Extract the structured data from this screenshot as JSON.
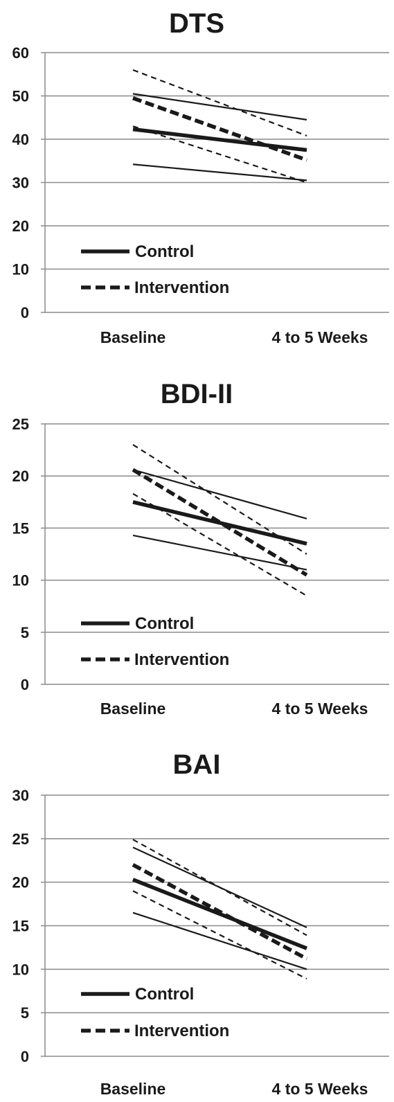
{
  "chart_data": [
    {
      "type": "line",
      "title": "DTS",
      "categories": [
        "Baseline",
        "4 to 5 Weeks"
      ],
      "ylim": [
        0,
        60
      ],
      "yticks": [
        0,
        10,
        20,
        30,
        40,
        50,
        60
      ],
      "grid": true,
      "legend": {
        "position": "bottom-left",
        "entries": [
          {
            "label": "Control",
            "style": "solid"
          },
          {
            "label": "Intervention",
            "style": "dashed"
          }
        ]
      },
      "series": [
        {
          "group": "Control",
          "role": "mean",
          "values": [
            42.3,
            37.5
          ]
        },
        {
          "group": "Control",
          "role": "upper",
          "values": [
            50.5,
            44.5
          ]
        },
        {
          "group": "Control",
          "role": "lower",
          "values": [
            34.2,
            30.5
          ]
        },
        {
          "group": "Intervention",
          "role": "mean",
          "values": [
            49.5,
            35.2
          ]
        },
        {
          "group": "Intervention",
          "role": "upper",
          "values": [
            56.0,
            40.8
          ]
        },
        {
          "group": "Intervention",
          "role": "lower",
          "values": [
            43.0,
            30.0
          ]
        }
      ]
    },
    {
      "type": "line",
      "title": "BDI-II",
      "categories": [
        "Baseline",
        "4 to 5 Weeks"
      ],
      "ylim": [
        0,
        25
      ],
      "yticks": [
        0,
        5,
        10,
        15,
        20,
        25
      ],
      "grid": true,
      "legend": {
        "position": "bottom-left",
        "entries": [
          {
            "label": "Control",
            "style": "solid"
          },
          {
            "label": "Intervention",
            "style": "dashed"
          }
        ]
      },
      "series": [
        {
          "group": "Control",
          "role": "mean",
          "values": [
            17.5,
            13.5
          ]
        },
        {
          "group": "Control",
          "role": "upper",
          "values": [
            20.6,
            15.9
          ]
        },
        {
          "group": "Control",
          "role": "lower",
          "values": [
            14.3,
            11.0
          ]
        },
        {
          "group": "Intervention",
          "role": "mean",
          "values": [
            20.6,
            10.5
          ]
        },
        {
          "group": "Intervention",
          "role": "upper",
          "values": [
            23.0,
            12.5
          ]
        },
        {
          "group": "Intervention",
          "role": "lower",
          "values": [
            18.3,
            8.5
          ]
        }
      ]
    },
    {
      "type": "line",
      "title": "BAI",
      "categories": [
        "Baseline",
        "4 to 5 Weeks"
      ],
      "ylim": [
        0,
        30
      ],
      "yticks": [
        0,
        5,
        10,
        15,
        20,
        25,
        30
      ],
      "grid": true,
      "legend": {
        "position": "bottom-left",
        "entries": [
          {
            "label": "Control",
            "style": "solid"
          },
          {
            "label": "Intervention",
            "style": "dashed"
          }
        ]
      },
      "series": [
        {
          "group": "Control",
          "role": "mean",
          "values": [
            20.3,
            12.4
          ]
        },
        {
          "group": "Control",
          "role": "upper",
          "values": [
            24.0,
            14.8
          ]
        },
        {
          "group": "Control",
          "role": "lower",
          "values": [
            16.5,
            10.0
          ]
        },
        {
          "group": "Intervention",
          "role": "mean",
          "values": [
            22.0,
            11.2
          ]
        },
        {
          "group": "Intervention",
          "role": "upper",
          "values": [
            24.9,
            13.9
          ]
        },
        {
          "group": "Intervention",
          "role": "lower",
          "values": [
            19.0,
            8.9
          ]
        }
      ]
    }
  ]
}
